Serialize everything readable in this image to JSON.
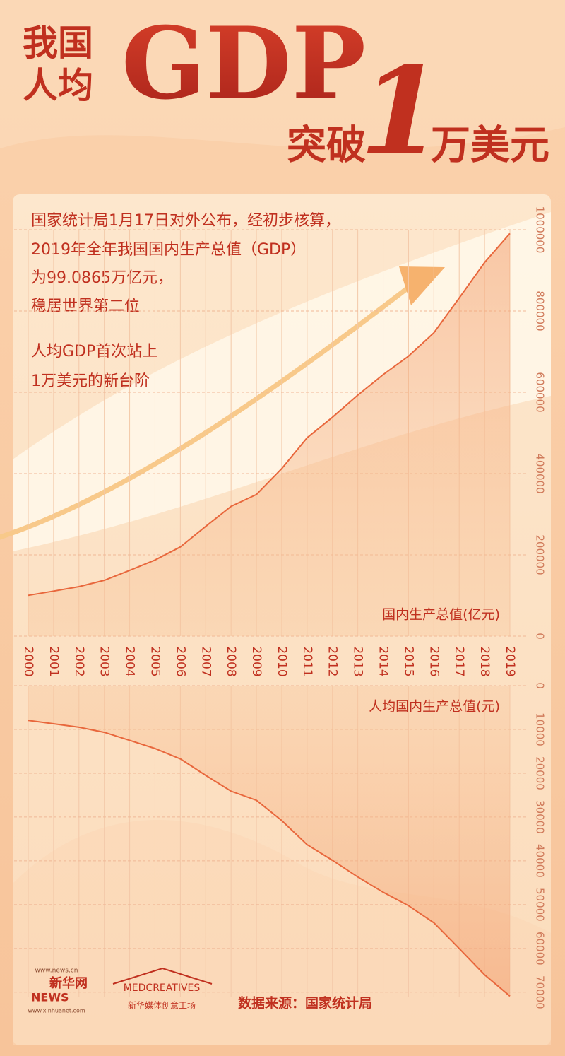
{
  "header": {
    "line1": "我国",
    "line2": "人均",
    "gdp": "GDP",
    "line3": "突破",
    "number": "1",
    "line4": "万美元"
  },
  "text": {
    "paragraph1": [
      "国家统计局1月17日对外公布，经初步核算，",
      "2019年全年我国国内生产总值（GDP）",
      "为99.0865万亿元，",
      "稳居世界第二位"
    ],
    "paragraph2": [
      "人均GDP首次站上",
      "1万美元的新台阶"
    ]
  },
  "chart_data": [
    {
      "type": "area",
      "y_label": "国内生产总值(亿元)",
      "categories": [
        "2000",
        "2001",
        "2002",
        "2003",
        "2004",
        "2005",
        "2006",
        "2007",
        "2008",
        "2009",
        "2010",
        "2011",
        "2012",
        "2013",
        "2014",
        "2015",
        "2016",
        "2017",
        "2018",
        "2019"
      ],
      "values": [
        100280,
        110863,
        121717,
        137422,
        161840,
        187319,
        219439,
        270092,
        319245,
        348518,
        412119,
        487940,
        538580,
        592963,
        643563,
        688858,
        746395,
        832036,
        919281,
        990865
      ],
      "color": "#e8673c",
      "ylim": [
        0,
        1000000
      ],
      "yticks": [
        0,
        200000,
        400000,
        600000,
        800000,
        1000000
      ],
      "grid": true
    },
    {
      "type": "area-down",
      "y_label": "人均国内生产总值(元)",
      "values": [
        7942,
        8717,
        9506,
        10666,
        12487,
        14368,
        16738,
        20494,
        24100,
        26180,
        30808,
        36302,
        39874,
        43684,
        47173,
        50237,
        54139,
        60014,
        66006,
        70892
      ],
      "color": "#e8673c",
      "ylim": [
        0,
        71000
      ],
      "yticks": [
        0,
        10000,
        20000,
        30000,
        40000,
        50000,
        60000,
        70000
      ],
      "grid": true
    }
  ],
  "footer": {
    "source": "数据来源：国家统计局",
    "logo1_url": "www.news.cn",
    "logo1_name": "新华网",
    "logo1_news": "NEWS",
    "logo1_url2": "www.xinhuanet.com",
    "logo2_name": "MEDCREATIVES",
    "logo2_cn": "新华媒体创意工场"
  }
}
